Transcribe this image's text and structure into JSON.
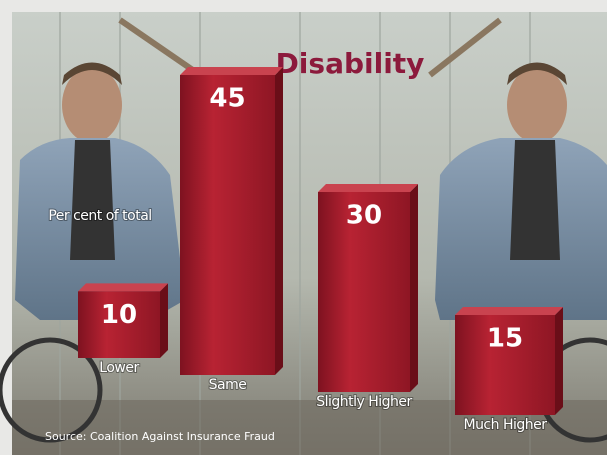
{
  "chart_data": {
    "type": "bar",
    "title": "Disability",
    "subtitle": "Per cent of total",
    "categories": [
      "Lower",
      "Same",
      "Slightly Higher",
      "Much Higher"
    ],
    "values": [
      10,
      45,
      30,
      15
    ],
    "color": "#a8202e",
    "source": "Source: Coalition Against Insurance Fraud"
  }
}
